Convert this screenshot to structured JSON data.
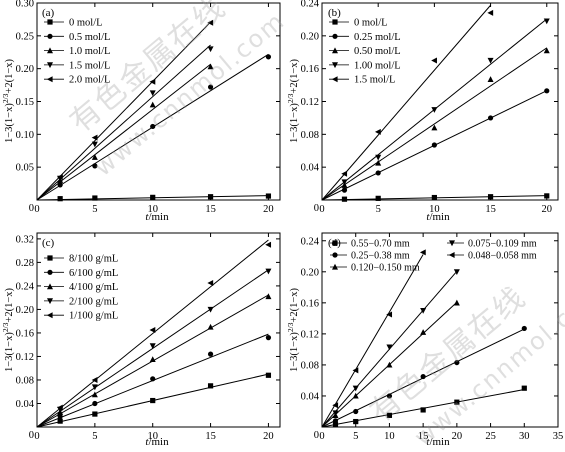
{
  "watermark": {
    "cn": "有色金属在线",
    "url": "www.cnnmol.com"
  },
  "chart_data": [
    {
      "type": "scatter",
      "panel_label": "(a)",
      "xlabel": "t/min",
      "ylabel": "1−3(1−x)^2/3+2(1−x)",
      "xlim": [
        0,
        21
      ],
      "ylim": [
        0,
        0.3
      ],
      "xticks": [
        0,
        5,
        10,
        15,
        20
      ],
      "yticks": [
        0,
        0.05,
        0.1,
        0.15,
        0.2,
        0.25,
        0.3
      ],
      "legend_position": "top-left",
      "series": [
        {
          "name": "0 mol/L",
          "marker": "square",
          "x": [
            0,
            2,
            5,
            10,
            15,
            20
          ],
          "y": [
            0,
            0.002,
            0.003,
            0.004,
            0.005,
            0.006
          ]
        },
        {
          "name": "0.5 mol/L",
          "marker": "circle",
          "x": [
            0,
            2,
            5,
            10,
            15,
            20
          ],
          "y": [
            0,
            0.023,
            0.052,
            0.112,
            0.172,
            0.218
          ]
        },
        {
          "name": "1.0 mol/L",
          "marker": "triangle-up",
          "x": [
            0,
            2,
            5,
            10,
            15
          ],
          "y": [
            0,
            0.03,
            0.065,
            0.145,
            0.203
          ]
        },
        {
          "name": "1.5 mol/L",
          "marker": "triangle-down",
          "x": [
            0,
            2,
            5,
            10,
            15
          ],
          "y": [
            0,
            0.033,
            0.085,
            0.163,
            0.23
          ]
        },
        {
          "name": "2.0 mol/L",
          "marker": "triangle-left",
          "x": [
            0,
            2,
            5,
            10,
            15
          ],
          "y": [
            0,
            0.035,
            0.095,
            0.18,
            0.27
          ]
        }
      ]
    },
    {
      "type": "scatter",
      "panel_label": "(b)",
      "xlabel": "t/min",
      "ylabel": "1−3(1−x)^2/3+2(1−x)",
      "xlim": [
        0,
        21
      ],
      "ylim": [
        0,
        0.24
      ],
      "xticks": [
        0,
        5,
        10,
        15,
        20
      ],
      "yticks": [
        0,
        0.04,
        0.08,
        0.12,
        0.16,
        0.2,
        0.24
      ],
      "legend_position": "top-left",
      "series": [
        {
          "name": "0 mol/L",
          "marker": "square",
          "x": [
            0,
            2,
            5,
            10,
            15,
            20
          ],
          "y": [
            0,
            0.001,
            0.002,
            0.003,
            0.004,
            0.005
          ]
        },
        {
          "name": "0.25 mol/L",
          "marker": "circle",
          "x": [
            0,
            2,
            5,
            10,
            15,
            20
          ],
          "y": [
            0,
            0.012,
            0.033,
            0.067,
            0.1,
            0.133
          ]
        },
        {
          "name": "0.50 mol/L",
          "marker": "triangle-up",
          "x": [
            0,
            2,
            5,
            10,
            15,
            20
          ],
          "y": [
            0,
            0.018,
            0.045,
            0.088,
            0.147,
            0.182
          ]
        },
        {
          "name": "1.00 mol/L",
          "marker": "triangle-down",
          "x": [
            0,
            2,
            5,
            10,
            15,
            20
          ],
          "y": [
            0,
            0.022,
            0.052,
            0.11,
            0.17,
            0.218
          ]
        },
        {
          "name": "1.5 mol/L",
          "marker": "triangle-left",
          "x": [
            0,
            2,
            5,
            10,
            15
          ],
          "y": [
            0,
            0.032,
            0.083,
            0.17,
            0.228
          ]
        }
      ]
    },
    {
      "type": "scatter",
      "panel_label": "(c)",
      "xlabel": "t/min",
      "ylabel": "1−3(1−x)^2/3+2(1−x)",
      "xlim": [
        0,
        21
      ],
      "ylim": [
        0,
        0.33
      ],
      "xticks": [
        0,
        5,
        10,
        15,
        20
      ],
      "yticks": [
        0,
        0.04,
        0.08,
        0.12,
        0.16,
        0.2,
        0.24,
        0.28,
        0.32
      ],
      "legend_position": "top-left",
      "series": [
        {
          "name": "8/100 g/mL",
          "marker": "square",
          "x": [
            0,
            2,
            5,
            10,
            15,
            20
          ],
          "y": [
            0,
            0.01,
            0.022,
            0.045,
            0.07,
            0.088
          ]
        },
        {
          "name": "6/100 g/mL",
          "marker": "circle",
          "x": [
            0,
            2,
            5,
            10,
            15,
            20
          ],
          "y": [
            0,
            0.018,
            0.04,
            0.082,
            0.124,
            0.152
          ]
        },
        {
          "name": "4/100 g/mL",
          "marker": "triangle-up",
          "x": [
            0,
            2,
            5,
            10,
            15,
            20
          ],
          "y": [
            0,
            0.025,
            0.055,
            0.115,
            0.17,
            0.222
          ]
        },
        {
          "name": "2/100 g/mL",
          "marker": "triangle-down",
          "x": [
            0,
            2,
            5,
            10,
            15,
            20
          ],
          "y": [
            0,
            0.03,
            0.068,
            0.138,
            0.2,
            0.265
          ]
        },
        {
          "name": "1/100 g/mL",
          "marker": "triangle-left",
          "x": [
            0,
            2,
            5,
            10,
            15,
            20
          ],
          "y": [
            0,
            0.033,
            0.08,
            0.165,
            0.245,
            0.31
          ]
        }
      ]
    },
    {
      "type": "scatter",
      "panel_label": "(d)",
      "xlabel": "t/min",
      "ylabel": "1−3(1−x)^2/3+2(1−x)",
      "xlim": [
        0,
        35
      ],
      "ylim": [
        0,
        0.25
      ],
      "xticks": [
        0,
        5,
        10,
        15,
        20,
        25,
        30,
        35
      ],
      "yticks": [
        0,
        0.04,
        0.08,
        0.12,
        0.16,
        0.2,
        0.24
      ],
      "legend_position": "top",
      "series": [
        {
          "name": "0.55−0.70 mm",
          "marker": "square",
          "x": [
            0,
            2,
            5,
            10,
            15,
            20,
            30
          ],
          "y": [
            0,
            0.003,
            0.007,
            0.015,
            0.022,
            0.032,
            0.05
          ]
        },
        {
          "name": "0.25−0.38 mm",
          "marker": "circle",
          "x": [
            0,
            2,
            5,
            10,
            15,
            20,
            30
          ],
          "y": [
            0,
            0.008,
            0.02,
            0.04,
            0.065,
            0.083,
            0.127
          ]
        },
        {
          "name": "0.120−0.150 mm",
          "marker": "triangle-up",
          "x": [
            0,
            2,
            5,
            10,
            15,
            20
          ],
          "y": [
            0,
            0.015,
            0.04,
            0.08,
            0.122,
            0.16
          ]
        },
        {
          "name": "0.075−0.109 mm",
          "marker": "triangle-down",
          "x": [
            0,
            2,
            5,
            10,
            15,
            20
          ],
          "y": [
            0,
            0.018,
            0.05,
            0.103,
            0.15,
            0.2
          ]
        },
        {
          "name": "0.048−0.058 mm",
          "marker": "triangle-left",
          "x": [
            0,
            2,
            5,
            10,
            15
          ],
          "y": [
            0,
            0.028,
            0.073,
            0.145,
            0.225
          ]
        }
      ]
    }
  ]
}
